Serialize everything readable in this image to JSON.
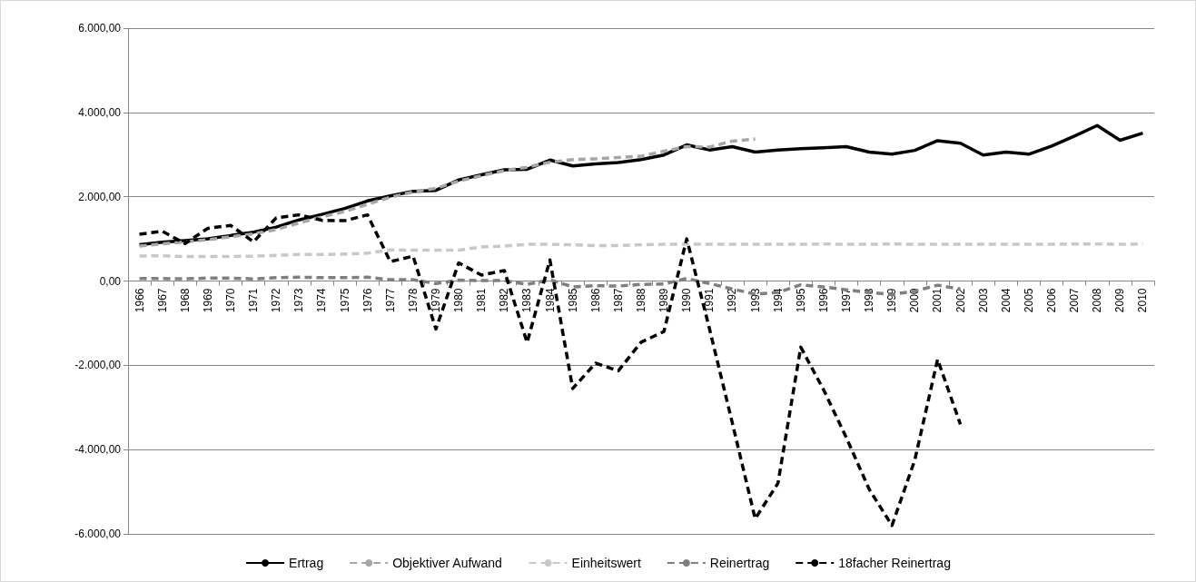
{
  "chart_data": {
    "type": "line",
    "categories": [
      "1966",
      "1967",
      "1968",
      "1969",
      "1970",
      "1971",
      "1972",
      "1973",
      "1974",
      "1975",
      "1976",
      "1977",
      "1978",
      "1979",
      "1980",
      "1981",
      "1982",
      "1983",
      "1984",
      "1985",
      "1986",
      "1987",
      "1988",
      "1989",
      "1990",
      "1991",
      "1992",
      "1993",
      "1994",
      "1995",
      "1996",
      "1997",
      "1998",
      "1999",
      "2000",
      "2001",
      "2002",
      "2003",
      "2004",
      "2005",
      "2006",
      "2007",
      "2008",
      "2009",
      "2010"
    ],
    "series": [
      {
        "name": "Ertrag",
        "color": "#000000",
        "line_style": "solid",
        "values": [
          860,
          920,
          960,
          1000,
          1080,
          1160,
          1280,
          1450,
          1580,
          1720,
          1900,
          2020,
          2130,
          2150,
          2400,
          2520,
          2640,
          2650,
          2870,
          2730,
          2780,
          2810,
          2880,
          2990,
          3230,
          3110,
          3190,
          3060,
          3110,
          3140,
          3160,
          3190,
          3060,
          3010,
          3100,
          3330,
          3270,
          2990,
          3060,
          3010,
          3200,
          3440,
          3690,
          3340,
          3510
        ]
      },
      {
        "name": "Objektiver Aufwand",
        "color": "#a6a6a6",
        "line_style": "dashed",
        "values": [
          830,
          880,
          930,
          980,
          1050,
          1120,
          1220,
          1380,
          1520,
          1650,
          1820,
          1990,
          2110,
          2200,
          2370,
          2500,
          2620,
          2700,
          2820,
          2880,
          2900,
          2930,
          2960,
          3080,
          3190,
          3180,
          3320,
          3370,
          null,
          null,
          null,
          null,
          null,
          null,
          null,
          null,
          null,
          null,
          null,
          null,
          null,
          null,
          null,
          null,
          null
        ]
      },
      {
        "name": "Einheitswert",
        "color": "#c8c8c8",
        "line_style": "dashed",
        "values": [
          590,
          600,
          580,
          580,
          580,
          590,
          610,
          630,
          630,
          640,
          660,
          740,
          730,
          730,
          730,
          810,
          830,
          870,
          870,
          860,
          840,
          840,
          860,
          870,
          870,
          870,
          870,
          870,
          870,
          870,
          880,
          870,
          870,
          880,
          870,
          870,
          870,
          870,
          870,
          870,
          870,
          880,
          880,
          870,
          880
        ]
      },
      {
        "name": "Reinertrag",
        "color": "#7f7f7f",
        "line_style": "dashed",
        "values": [
          60,
          60,
          50,
          70,
          70,
          50,
          80,
          90,
          80,
          80,
          90,
          30,
          30,
          -60,
          20,
          10,
          10,
          -80,
          30,
          -140,
          -110,
          -120,
          -80,
          -70,
          60,
          -60,
          -190,
          -310,
          -270,
          -90,
          -140,
          -210,
          -270,
          -320,
          -240,
          -100,
          -190,
          null,
          null,
          null,
          null,
          null,
          null,
          null,
          null
        ]
      },
      {
        "name": "18facher Reinertrag",
        "color": "#000000",
        "line_style": "dashed",
        "values": [
          1110,
          1180,
          890,
          1250,
          1320,
          930,
          1500,
          1570,
          1440,
          1430,
          1570,
          460,
          590,
          -1140,
          430,
          140,
          250,
          -1460,
          500,
          -2550,
          -1950,
          -2130,
          -1450,
          -1200,
          1000,
          -1140,
          -3370,
          -5640,
          -4800,
          -1570,
          -2580,
          -3720,
          -4940,
          -5800,
          -4250,
          -1860,
          -3400,
          null,
          null,
          null,
          null,
          null,
          null,
          null,
          null
        ]
      }
    ],
    "ylim": [
      -6000,
      6000
    ],
    "yticks": [
      {
        "value": -6000,
        "label": "-6.000,00"
      },
      {
        "value": -4000,
        "label": "-4.000,00"
      },
      {
        "value": -2000,
        "label": "-2.000,00"
      },
      {
        "value": 0,
        "label": "0,00"
      },
      {
        "value": 2000,
        "label": "2.000,00"
      },
      {
        "value": 4000,
        "label": "4.000,00"
      },
      {
        "value": 6000,
        "label": "6.000,00"
      }
    ],
    "grid": "y",
    "legend": "bottom",
    "marker": "none"
  }
}
